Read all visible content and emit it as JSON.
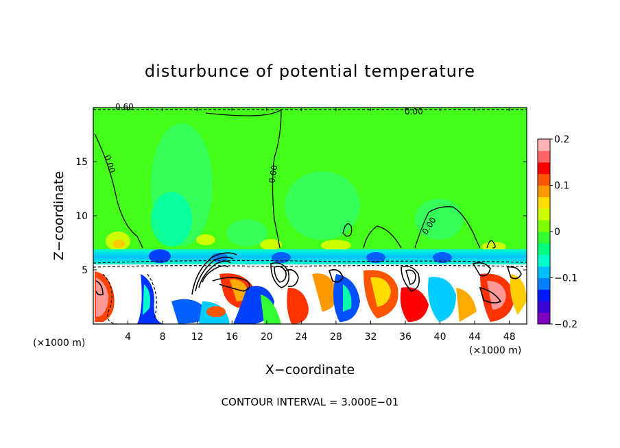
{
  "chart_data": {
    "type": "heatmap",
    "title": "disturbunce of potential temperature",
    "xlabel": "X−coordinate",
    "ylabel": "Z−coordinate",
    "x_unit_label": "(×1000 m)",
    "x_unit_label_right": "(×1000 m)",
    "xlim": [
      0,
      50
    ],
    "ylim": [
      0,
      20
    ],
    "x_ticks": [
      4,
      8,
      12,
      16,
      20,
      24,
      28,
      32,
      36,
      40,
      44,
      48
    ],
    "y_ticks": [
      5,
      10,
      15
    ],
    "colorbar": {
      "range": [
        -0.2,
        0.2
      ],
      "ticks": [
        "0.2",
        "0.1",
        "0",
        "−0.1",
        "−0.2"
      ],
      "tick_values": [
        0.2,
        0.1,
        0,
        -0.1,
        -0.2
      ],
      "colors": [
        "#7f00bf",
        "#3b00d6",
        "#0019ff",
        "#0080ff",
        "#00bfff",
        "#00ffcc",
        "#00ff80",
        "#33ff33",
        "#80ff00",
        "#ccff00",
        "#ffdd00",
        "#ff9900",
        "#ff5500",
        "#ff0000",
        "#ff6666",
        "#ffb3b3"
      ]
    },
    "contour_labels": [
      "0.60",
      "0.00",
      "0.00",
      "0.00",
      "0.00"
    ],
    "contour_interval_text": "CONTOUR INTERVAL = 3.000E−01",
    "grid": false
  }
}
